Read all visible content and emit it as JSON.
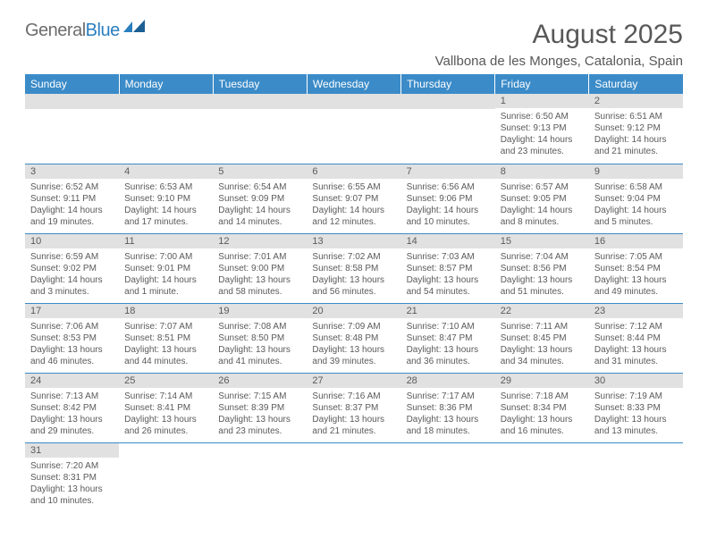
{
  "logo": {
    "general": "General",
    "blue": "Blue"
  },
  "title": "August 2025",
  "location": "Vallbona de les Monges, Catalonia, Spain",
  "colors": {
    "header_bg": "#3b8bc8",
    "header_text": "#ffffff",
    "daynum_bg": "#e1e1e1",
    "border": "#3b8bc8",
    "body_text": "#5a5a5a"
  },
  "days_of_week": [
    "Sunday",
    "Monday",
    "Tuesday",
    "Wednesday",
    "Thursday",
    "Friday",
    "Saturday"
  ],
  "weeks": [
    [
      null,
      null,
      null,
      null,
      null,
      {
        "n": "1",
        "sr": "6:50 AM",
        "ss": "9:13 PM",
        "dl": "14 hours and 23 minutes."
      },
      {
        "n": "2",
        "sr": "6:51 AM",
        "ss": "9:12 PM",
        "dl": "14 hours and 21 minutes."
      }
    ],
    [
      {
        "n": "3",
        "sr": "6:52 AM",
        "ss": "9:11 PM",
        "dl": "14 hours and 19 minutes."
      },
      {
        "n": "4",
        "sr": "6:53 AM",
        "ss": "9:10 PM",
        "dl": "14 hours and 17 minutes."
      },
      {
        "n": "5",
        "sr": "6:54 AM",
        "ss": "9:09 PM",
        "dl": "14 hours and 14 minutes."
      },
      {
        "n": "6",
        "sr": "6:55 AM",
        "ss": "9:07 PM",
        "dl": "14 hours and 12 minutes."
      },
      {
        "n": "7",
        "sr": "6:56 AM",
        "ss": "9:06 PM",
        "dl": "14 hours and 10 minutes."
      },
      {
        "n": "8",
        "sr": "6:57 AM",
        "ss": "9:05 PM",
        "dl": "14 hours and 8 minutes."
      },
      {
        "n": "9",
        "sr": "6:58 AM",
        "ss": "9:04 PM",
        "dl": "14 hours and 5 minutes."
      }
    ],
    [
      {
        "n": "10",
        "sr": "6:59 AM",
        "ss": "9:02 PM",
        "dl": "14 hours and 3 minutes."
      },
      {
        "n": "11",
        "sr": "7:00 AM",
        "ss": "9:01 PM",
        "dl": "14 hours and 1 minute."
      },
      {
        "n": "12",
        "sr": "7:01 AM",
        "ss": "9:00 PM",
        "dl": "13 hours and 58 minutes."
      },
      {
        "n": "13",
        "sr": "7:02 AM",
        "ss": "8:58 PM",
        "dl": "13 hours and 56 minutes."
      },
      {
        "n": "14",
        "sr": "7:03 AM",
        "ss": "8:57 PM",
        "dl": "13 hours and 54 minutes."
      },
      {
        "n": "15",
        "sr": "7:04 AM",
        "ss": "8:56 PM",
        "dl": "13 hours and 51 minutes."
      },
      {
        "n": "16",
        "sr": "7:05 AM",
        "ss": "8:54 PM",
        "dl": "13 hours and 49 minutes."
      }
    ],
    [
      {
        "n": "17",
        "sr": "7:06 AM",
        "ss": "8:53 PM",
        "dl": "13 hours and 46 minutes."
      },
      {
        "n": "18",
        "sr": "7:07 AM",
        "ss": "8:51 PM",
        "dl": "13 hours and 44 minutes."
      },
      {
        "n": "19",
        "sr": "7:08 AM",
        "ss": "8:50 PM",
        "dl": "13 hours and 41 minutes."
      },
      {
        "n": "20",
        "sr": "7:09 AM",
        "ss": "8:48 PM",
        "dl": "13 hours and 39 minutes."
      },
      {
        "n": "21",
        "sr": "7:10 AM",
        "ss": "8:47 PM",
        "dl": "13 hours and 36 minutes."
      },
      {
        "n": "22",
        "sr": "7:11 AM",
        "ss": "8:45 PM",
        "dl": "13 hours and 34 minutes."
      },
      {
        "n": "23",
        "sr": "7:12 AM",
        "ss": "8:44 PM",
        "dl": "13 hours and 31 minutes."
      }
    ],
    [
      {
        "n": "24",
        "sr": "7:13 AM",
        "ss": "8:42 PM",
        "dl": "13 hours and 29 minutes."
      },
      {
        "n": "25",
        "sr": "7:14 AM",
        "ss": "8:41 PM",
        "dl": "13 hours and 26 minutes."
      },
      {
        "n": "26",
        "sr": "7:15 AM",
        "ss": "8:39 PM",
        "dl": "13 hours and 23 minutes."
      },
      {
        "n": "27",
        "sr": "7:16 AM",
        "ss": "8:37 PM",
        "dl": "13 hours and 21 minutes."
      },
      {
        "n": "28",
        "sr": "7:17 AM",
        "ss": "8:36 PM",
        "dl": "13 hours and 18 minutes."
      },
      {
        "n": "29",
        "sr": "7:18 AM",
        "ss": "8:34 PM",
        "dl": "13 hours and 16 minutes."
      },
      {
        "n": "30",
        "sr": "7:19 AM",
        "ss": "8:33 PM",
        "dl": "13 hours and 13 minutes."
      }
    ],
    [
      {
        "n": "31",
        "sr": "7:20 AM",
        "ss": "8:31 PM",
        "dl": "13 hours and 10 minutes."
      },
      null,
      null,
      null,
      null,
      null,
      null
    ]
  ],
  "labels": {
    "sunrise": "Sunrise:",
    "sunset": "Sunset:",
    "daylight": "Daylight:"
  }
}
